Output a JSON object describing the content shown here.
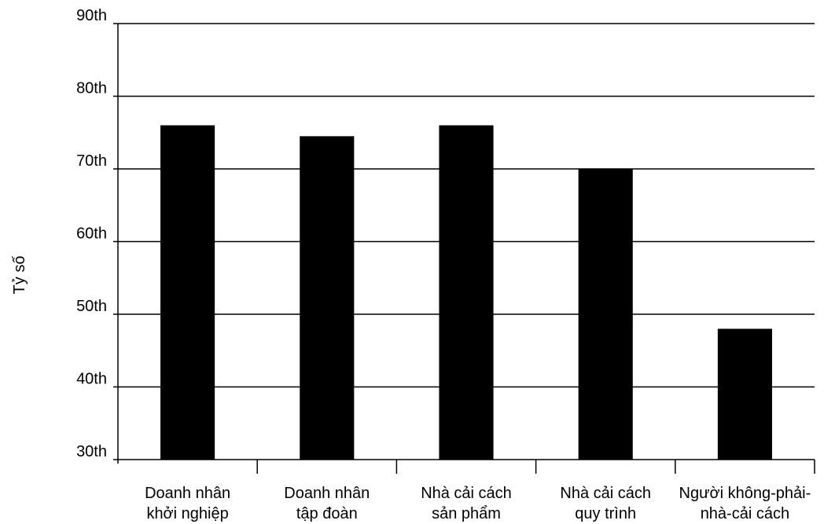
{
  "chart_data": {
    "type": "bar",
    "title": "",
    "xlabel": "",
    "ylabel": "Tỷ số",
    "ylim": [
      30,
      90
    ],
    "grid": true,
    "y_ticks": [
      {
        "value": 30,
        "label": "30th"
      },
      {
        "value": 40,
        "label": "40th"
      },
      {
        "value": 50,
        "label": "50th"
      },
      {
        "value": 60,
        "label": "60th"
      },
      {
        "value": 70,
        "label": "70th"
      },
      {
        "value": 80,
        "label": "80th"
      },
      {
        "value": 90,
        "label": "90th"
      }
    ],
    "categories": [
      [
        "Doanh nhân",
        "khởi nghiệp"
      ],
      [
        "Doanh nhân",
        "tập đoàn"
      ],
      [
        "Nhà cải cách",
        "sản phẩm"
      ],
      [
        "Nhà cải cách",
        "quy trình"
      ],
      [
        "Người không-phải-",
        "nhà-cải cách"
      ]
    ],
    "values": [
      76,
      74.5,
      76,
      70,
      48
    ],
    "bar_color": "#000000"
  }
}
